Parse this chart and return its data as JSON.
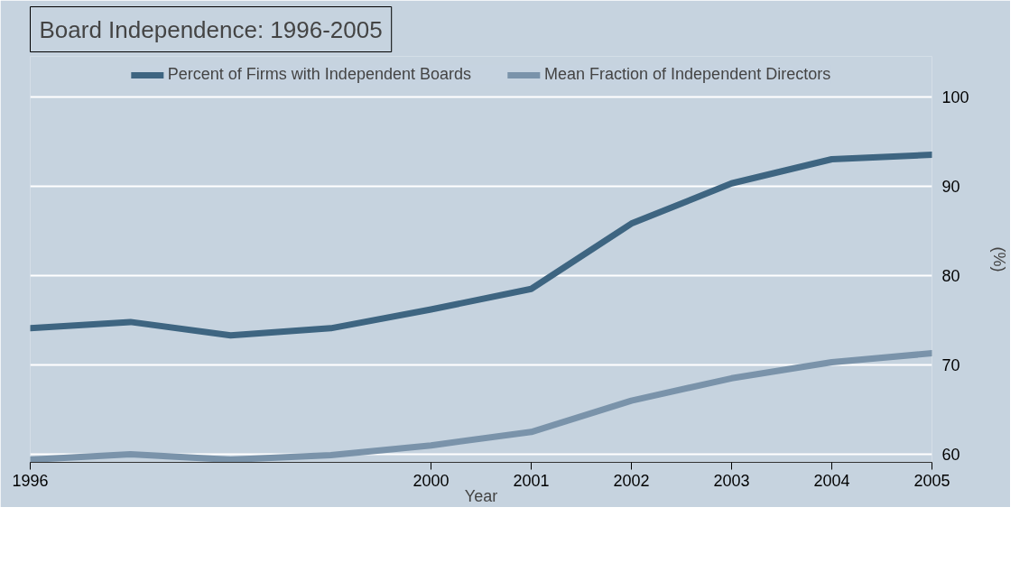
{
  "chart_data": {
    "type": "line",
    "title": "Board Independence: 1996-2005",
    "xlabel": "Year",
    "ylabel": "(%)",
    "x": [
      1996,
      1997,
      1998,
      1999,
      2000,
      2001,
      2002,
      2003,
      2004,
      2005
    ],
    "series": [
      {
        "name": "Percent of Firms with Independent Boards",
        "color": "#3e6581",
        "values": [
          74.1,
          74.8,
          73.3,
          74.1,
          76.2,
          78.5,
          85.8,
          90.3,
          93.0,
          93.5
        ]
      },
      {
        "name": "Mean Fraction of Independent Directors",
        "color": "#7a93aa",
        "values": [
          59.4,
          60.0,
          59.4,
          59.9,
          61.0,
          62.5,
          66.0,
          68.5,
          70.3,
          71.3
        ]
      }
    ],
    "xlim": [
      1996,
      2005
    ],
    "xticks": [
      1996,
      2000,
      2001,
      2002,
      2003,
      2004,
      2005
    ],
    "ylim": [
      59.1,
      104.5
    ],
    "yticks": [
      60,
      70,
      80,
      90,
      100
    ],
    "grid": "y",
    "legend": "top",
    "marker": "none",
    "line_style": "solid"
  }
}
